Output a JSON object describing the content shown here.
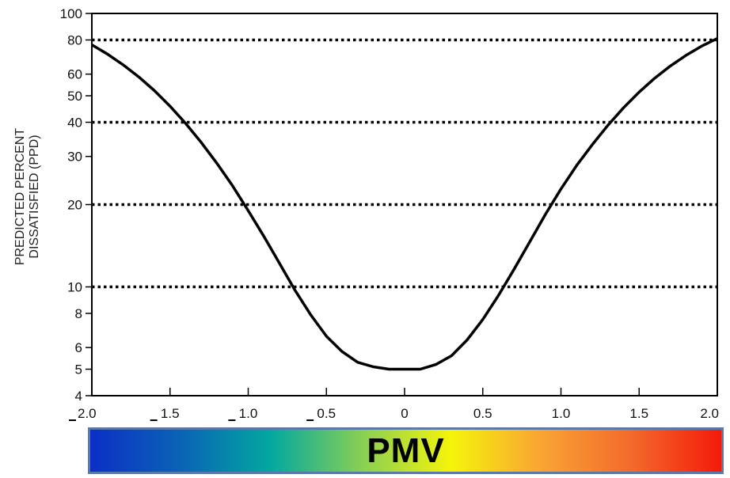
{
  "chart_data": {
    "type": "line",
    "title": "",
    "xlabel": "",
    "ylabel_lines": [
      "PREDICTED PERCENT",
      "DISSATISFIED (PPD)"
    ],
    "xlim": [
      -2.0,
      2.0
    ],
    "ylim": [
      4,
      100
    ],
    "y_scale": "log",
    "x_ticks": [
      {
        "value": -2.0,
        "label": "2.0",
        "minus": true
      },
      {
        "value": -1.5,
        "label": "1.5",
        "minus": true
      },
      {
        "value": -1.0,
        "label": "1.0",
        "minus": true
      },
      {
        "value": -0.5,
        "label": "0.5",
        "minus": true
      },
      {
        "value": 0,
        "label": "0",
        "minus": false
      },
      {
        "value": 0.5,
        "label": "0.5",
        "minus": false
      },
      {
        "value": 1.0,
        "label": "1.0",
        "minus": false
      },
      {
        "value": 1.5,
        "label": "1.5",
        "minus": false
      },
      {
        "value": 2.0,
        "label": "2.0",
        "minus": false
      }
    ],
    "y_ticks": [
      {
        "value": 4,
        "label": "4"
      },
      {
        "value": 5,
        "label": "5"
      },
      {
        "value": 6,
        "label": "6"
      },
      {
        "value": 8,
        "label": "8"
      },
      {
        "value": 10,
        "label": "10"
      },
      {
        "value": 20,
        "label": "20"
      },
      {
        "value": 30,
        "label": "30"
      },
      {
        "value": 40,
        "label": "40"
      },
      {
        "value": 50,
        "label": "50"
      },
      {
        "value": 60,
        "label": "60"
      },
      {
        "value": 80,
        "label": "80"
      },
      {
        "value": 100,
        "label": "100"
      }
    ],
    "reference_lines": [
      10,
      20,
      40,
      80
    ],
    "series": [
      {
        "color": "#000000",
        "x": [
          -2.0,
          -1.9,
          -1.8,
          -1.7,
          -1.6,
          -1.5,
          -1.4,
          -1.3,
          -1.2,
          -1.1,
          -1.0,
          -0.9,
          -0.8,
          -0.7,
          -0.6,
          -0.5,
          -0.4,
          -0.3,
          -0.2,
          -0.1,
          0,
          0.1,
          0.2,
          0.3,
          0.4,
          0.5,
          0.6,
          0.7,
          0.8,
          0.9,
          1.0,
          1.1,
          1.2,
          1.3,
          1.4,
          1.5,
          1.6,
          1.7,
          1.8,
          1.9,
          2.0
        ],
        "values": [
          76.8,
          71.0,
          64.9,
          58.6,
          52.2,
          45.8,
          39.6,
          33.7,
          28.3,
          23.4,
          19.0,
          15.3,
          12.2,
          9.7,
          7.9,
          6.6,
          5.8,
          5.3,
          5.1,
          5.0,
          5.0,
          5.0,
          5.2,
          5.6,
          6.4,
          7.6,
          9.3,
          11.6,
          14.6,
          18.4,
          22.8,
          27.8,
          33.1,
          39.0,
          45.2,
          51.6,
          58.0,
          64.3,
          70.3,
          76.0,
          81.0
        ]
      }
    ]
  },
  "colorbar": {
    "label": "PMV",
    "colors": [
      "#0c2fc6",
      "#0a63b5",
      "#03a8a0",
      "#86cf55",
      "#f5f40a",
      "#f9a434",
      "#f36a2c",
      "#f41a0a"
    ],
    "border_color": "#5b79a8"
  }
}
